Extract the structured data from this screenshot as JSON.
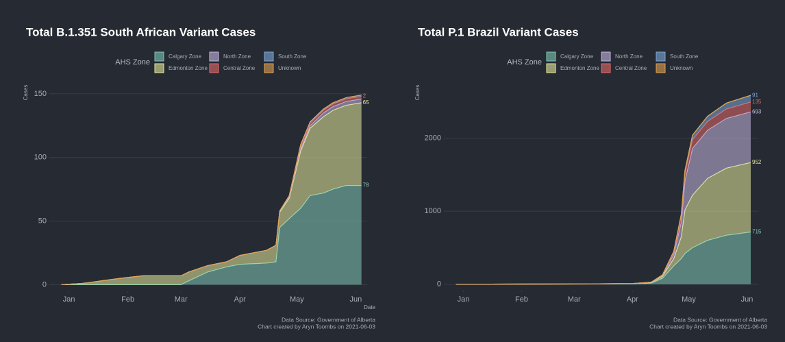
{
  "chart_data": [
    {
      "type": "area",
      "stacked": true,
      "title": "Total B.1.351 South African Variant Cases",
      "legend_title": "AHS Zone",
      "x_label": "Date",
      "y_label": "Cases",
      "source": "Data Source: Government of Alberta",
      "credit": "Chart created by Aryn Toombs on 2021-06-03",
      "x": [
        -4,
        7,
        17,
        27,
        39,
        59,
        63,
        73,
        83,
        90,
        104,
        109,
        111,
        116,
        122,
        127,
        134,
        139,
        146,
        154
      ],
      "xlim": [
        -6,
        157
      ],
      "xticks": [
        {
          "value": 0,
          "label": "Jan"
        },
        {
          "value": 31,
          "label": "Feb"
        },
        {
          "value": 59,
          "label": "Mar"
        },
        {
          "value": 90,
          "label": "Apr"
        },
        {
          "value": 120,
          "label": "May"
        },
        {
          "value": 151,
          "label": "Jun"
        }
      ],
      "ylim": [
        -3,
        158
      ],
      "yticks": [
        0,
        50,
        100,
        150
      ],
      "grid": true,
      "series": [
        {
          "name": "Calgary Zone",
          "color": "#7fc8b4",
          "end_label": true,
          "values": [
            0,
            0,
            0,
            0,
            0,
            0,
            3,
            10,
            14,
            16,
            17,
            18,
            45,
            52,
            60,
            70,
            72,
            75,
            78,
            78
          ]
        },
        {
          "name": "Edmonton Zone",
          "color": "#e6eb9c",
          "end_label": true,
          "values": [
            0,
            1,
            3,
            5,
            7,
            7,
            7,
            5,
            4,
            7,
            10,
            13,
            12,
            16,
            45,
            53,
            60,
            62,
            63,
            65
          ]
        },
        {
          "name": "North Zone",
          "color": "#c4b6e0",
          "end_label": false,
          "values": [
            0,
            0,
            0,
            0,
            0,
            0,
            0,
            0,
            0,
            0,
            0,
            0,
            1,
            1,
            2,
            2,
            3,
            3,
            3,
            3
          ]
        },
        {
          "name": "Central Zone",
          "color": "#e36a6a",
          "end_label": true,
          "values": [
            0,
            0,
            0,
            0,
            0,
            0,
            0,
            0,
            0,
            0,
            0,
            0,
            0,
            1,
            2,
            2,
            2,
            2,
            2,
            2
          ]
        },
        {
          "name": "South Zone",
          "color": "#7ea8d6",
          "end_label": false,
          "values": [
            0,
            0,
            0,
            0,
            0,
            0,
            0,
            0,
            0,
            0,
            0,
            0,
            0,
            0,
            1,
            1,
            1,
            1,
            1,
            1
          ]
        },
        {
          "name": "Unknown",
          "color": "#e0a352",
          "end_label": false,
          "values": [
            0,
            0,
            0,
            0,
            0,
            0,
            0,
            0,
            0,
            0,
            0,
            0,
            0,
            0,
            0,
            0,
            0,
            0,
            0,
            0
          ]
        }
      ]
    },
    {
      "type": "area",
      "stacked": true,
      "title": "Total P.1 Brazil Variant Cases",
      "legend_title": "AHS Zone",
      "y_label": "Cases",
      "source": "Data Source: Government of Alberta",
      "credit": "Chart created by Aryn Toombs on 2021-06-03",
      "x": [
        -4,
        60,
        90,
        100,
        106,
        112,
        116,
        118,
        122,
        130,
        140,
        153
      ],
      "xlim": [
        -6,
        157
      ],
      "xticks": [
        {
          "value": 0,
          "label": "Jan"
        },
        {
          "value": 31,
          "label": "Feb"
        },
        {
          "value": 59,
          "label": "Mar"
        },
        {
          "value": 90,
          "label": "Apr"
        },
        {
          "value": 120,
          "label": "May"
        },
        {
          "value": 151,
          "label": "Jun"
        }
      ],
      "ylim": [
        -50,
        2700
      ],
      "yticks": [
        0,
        1000,
        2000
      ],
      "grid": true,
      "series": [
        {
          "name": "Calgary Zone",
          "color": "#7fc8b4",
          "end_label": true,
          "values": [
            0,
            2,
            5,
            15,
            80,
            250,
            350,
            420,
            500,
            600,
            670,
            715
          ]
        },
        {
          "name": "Edmonton Zone",
          "color": "#e6eb9c",
          "end_label": true,
          "values": [
            0,
            1,
            3,
            10,
            30,
            100,
            300,
            600,
            720,
            850,
            920,
            952
          ]
        },
        {
          "name": "North Zone",
          "color": "#c4b6e0",
          "end_label": true,
          "values": [
            0,
            0,
            1,
            2,
            10,
            60,
            200,
            400,
            640,
            660,
            680,
            693
          ]
        },
        {
          "name": "Central Zone",
          "color": "#e36a6a",
          "end_label": true,
          "values": [
            0,
            0,
            0,
            1,
            5,
            30,
            80,
            100,
            120,
            120,
            130,
            135
          ]
        },
        {
          "name": "South Zone",
          "color": "#7ea8d6",
          "end_label": true,
          "values": [
            0,
            0,
            0,
            0,
            3,
            10,
            30,
            40,
            60,
            70,
            80,
            91
          ]
        },
        {
          "name": "Unknown",
          "color": "#e0a352",
          "end_label": false,
          "values": [
            0,
            0,
            0,
            0,
            0,
            0,
            0,
            0,
            0,
            0,
            0,
            0
          ]
        }
      ]
    }
  ]
}
